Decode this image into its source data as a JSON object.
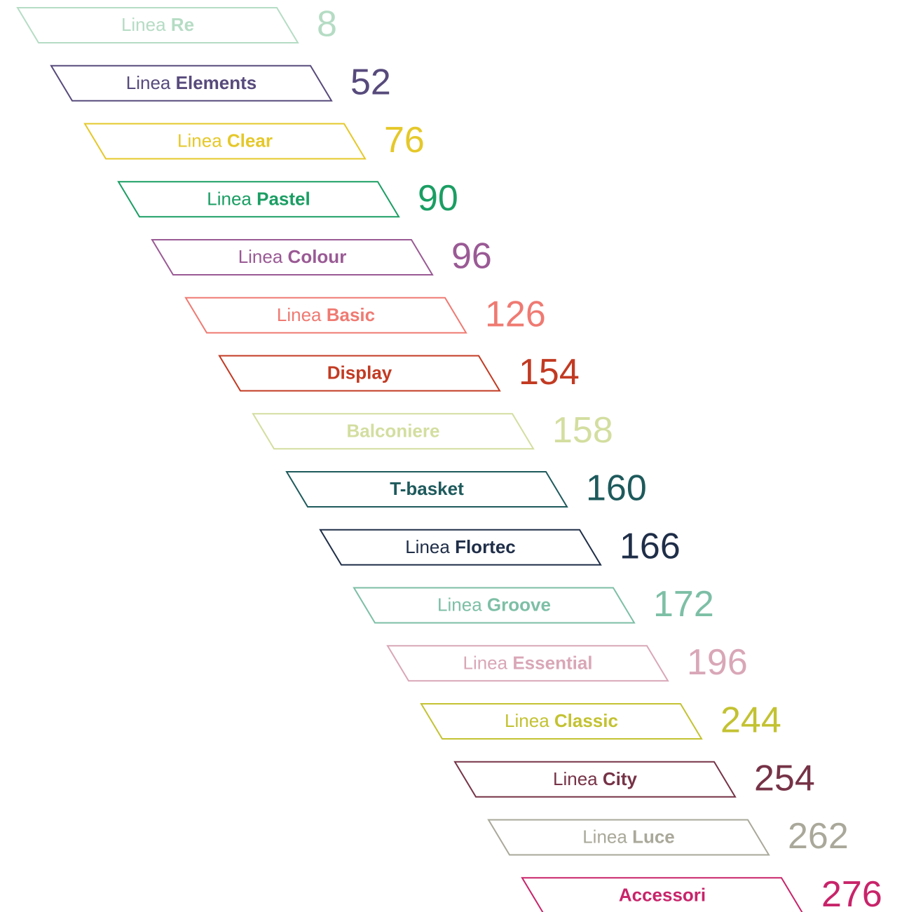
{
  "items": [
    {
      "prefix": "Linea",
      "name": "Re",
      "value": 8,
      "color": "#b5dcc4"
    },
    {
      "prefix": "Linea",
      "name": "Elements",
      "value": 52,
      "color": "#574a7c"
    },
    {
      "prefix": "Linea",
      "name": "Clear",
      "value": 76,
      "color": "#e5c82a"
    },
    {
      "prefix": "Linea",
      "name": "Pastel",
      "value": 90,
      "color": "#1a9e63"
    },
    {
      "prefix": "Linea",
      "name": "Colour",
      "value": 96,
      "color": "#9a5a95"
    },
    {
      "prefix": "Linea",
      "name": "Basic",
      "value": 126,
      "color": "#ef7a72"
    },
    {
      "name": "Display",
      "value": 154,
      "color": "#c23a22"
    },
    {
      "name": "Balconiere",
      "value": 158,
      "color": "#d3dea0"
    },
    {
      "name": "T-basket",
      "value": 160,
      "color": "#1e5a5c"
    },
    {
      "prefix": "Linea",
      "name": "Flortec",
      "value": 166,
      "color": "#1f2e48"
    },
    {
      "prefix": "Linea",
      "name": "Groove",
      "value": 172,
      "color": "#7dbfa6"
    },
    {
      "prefix": "Linea",
      "name": "Essential",
      "value": 196,
      "color": "#d9a7b7"
    },
    {
      "prefix": "Linea",
      "name": "Classic",
      "value": 244,
      "color": "#c3c232"
    },
    {
      "prefix": "Linea",
      "name": "City",
      "value": 254,
      "color": "#763347"
    },
    {
      "prefix": "Linea",
      "name": "Luce",
      "value": 262,
      "color": "#a9a89a"
    },
    {
      "name": "Accessori",
      "value": 276,
      "color": "#c8246a"
    }
  ]
}
